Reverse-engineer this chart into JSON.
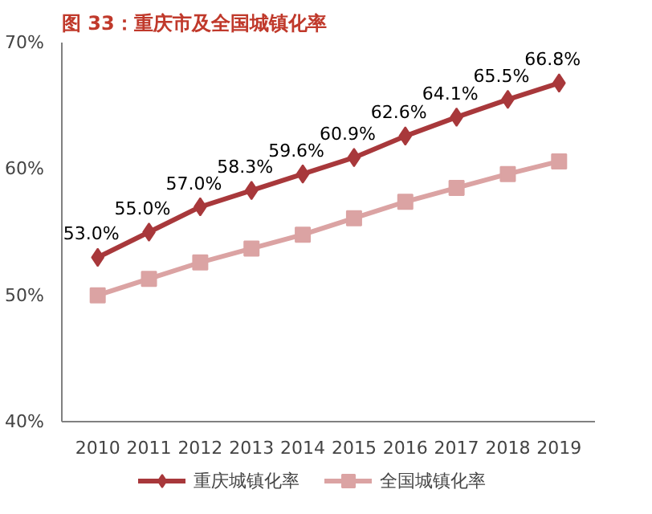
{
  "chart_data": {
    "type": "line",
    "title": "图 33：重庆市及全国城镇化率",
    "categories": [
      "2010",
      "2011",
      "2012",
      "2013",
      "2014",
      "2015",
      "2016",
      "2017",
      "2018",
      "2019"
    ],
    "series": [
      {
        "name": "重庆城镇化率",
        "color": "#a8383b",
        "marker": "diamond",
        "values": [
          53.0,
          55.0,
          57.0,
          58.3,
          59.6,
          60.9,
          62.6,
          64.1,
          65.5,
          66.8
        ],
        "value_labels": [
          "53.0%",
          "55.0%",
          "57.0%",
          "58.3%",
          "59.6%",
          "60.9%",
          "62.6%",
          "64.1%",
          "65.5%",
          "66.8%"
        ]
      },
      {
        "name": "全国城镇化率",
        "color": "#dba3a3",
        "marker": "square",
        "values": [
          50.0,
          51.3,
          52.6,
          53.7,
          54.8,
          56.1,
          57.4,
          58.5,
          59.6,
          60.6
        ]
      }
    ],
    "ylim": [
      40,
      70
    ],
    "yticks": [
      {
        "value": 40,
        "label": "40%"
      },
      {
        "value": 50,
        "label": "50%"
      },
      {
        "value": 60,
        "label": "60%"
      },
      {
        "value": 70,
        "label": "70%"
      }
    ],
    "grid": false,
    "legend": "bottom",
    "line_style": "solid"
  }
}
